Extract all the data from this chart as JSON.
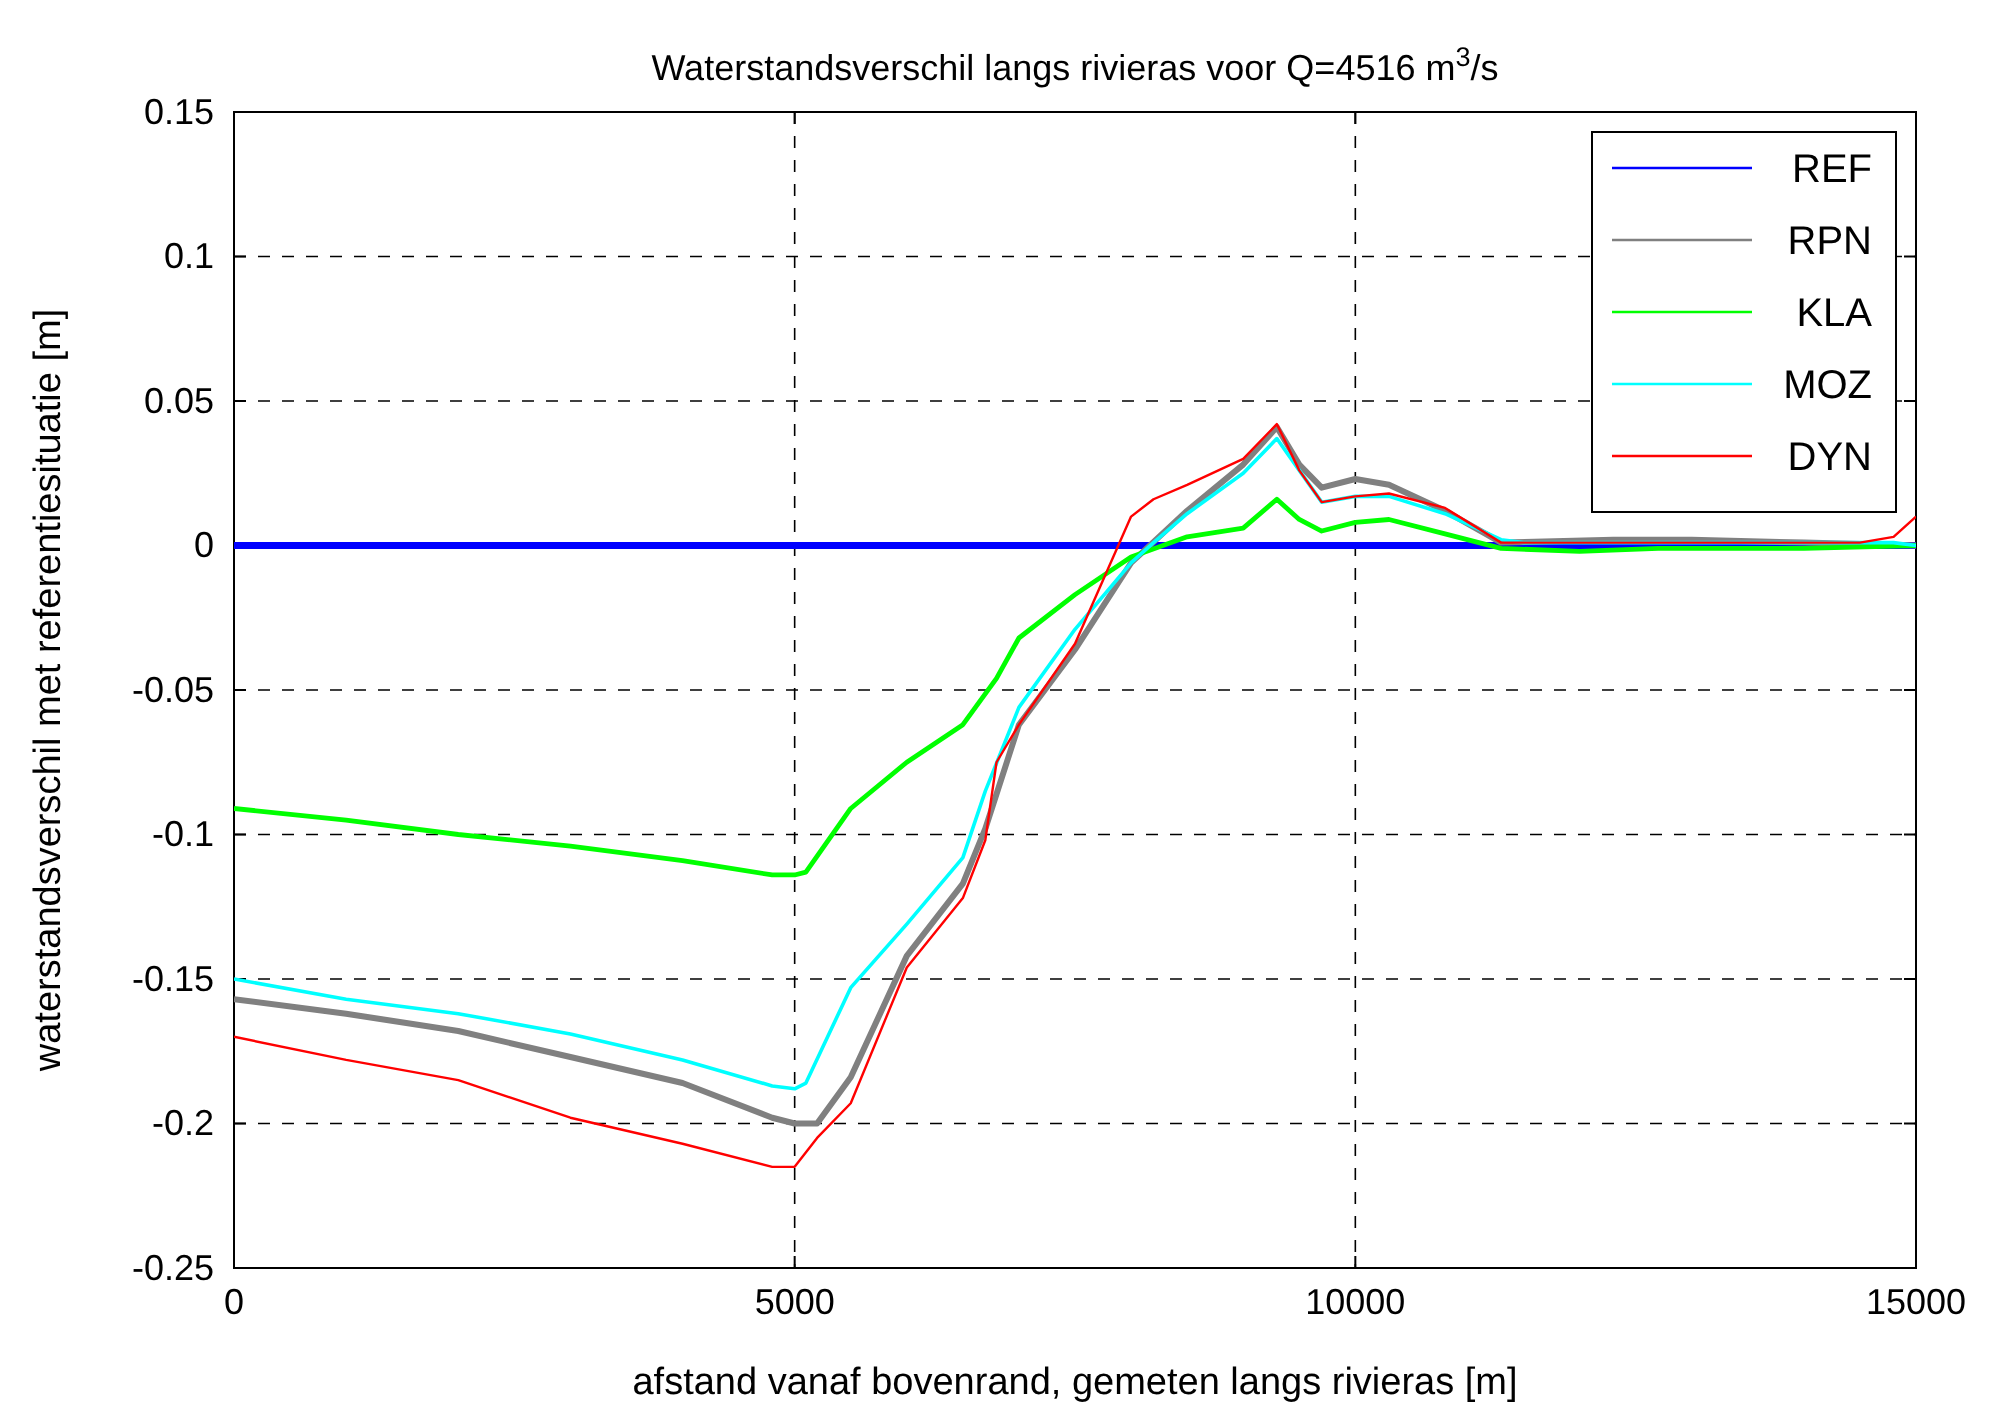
{
  "chart_data": {
    "type": "line",
    "title": "Waterstandsverschil langs rivieras voor Q=4516 m$^{3}$/s",
    "xlabel": "afstand vanaf bovenrand, gemeten langs rivieras [m]",
    "ylabel": "waterstandsverschil met referentiesituatie [m]",
    "xlim": [
      0,
      15000
    ],
    "xticks": [
      0,
      5000,
      10000,
      15000
    ],
    "ylim": [
      -0.25,
      0.15
    ],
    "yticks": [
      -0.25,
      -0.2,
      -0.15,
      -0.1,
      -0.05,
      0,
      0.05,
      0.1,
      0.15
    ],
    "grid": true,
    "legend": "top right",
    "line_style": "solid",
    "marker": "none",
    "series": [
      {
        "name": "REF",
        "color": "#0000ff",
        "x": [
          0,
          15000
        ],
        "values": [
          0,
          0
        ]
      },
      {
        "name": "RPN",
        "color": "#808080",
        "x": [
          0,
          1000,
          2000,
          3000,
          4000,
          4800,
          5000,
          5200,
          5500,
          6000,
          6500,
          6700,
          7000,
          7500,
          8000,
          8500,
          9000,
          9300,
          9500,
          9700,
          10000,
          10300,
          10800,
          11300,
          12300,
          13000,
          14000,
          15000
        ],
        "values": [
          -0.157,
          -0.162,
          -0.168,
          -0.177,
          -0.186,
          -0.198,
          -0.2,
          -0.2,
          -0.184,
          -0.142,
          -0.117,
          -0.098,
          -0.062,
          -0.036,
          -0.006,
          0.012,
          0.028,
          0.041,
          0.028,
          0.02,
          0.023,
          0.021,
          0.012,
          0.001,
          0.002,
          0.002,
          0.001,
          0
        ]
      },
      {
        "name": "KLA",
        "color": "#00ff00",
        "x": [
          0,
          1000,
          2000,
          3000,
          4000,
          4800,
          5000,
          5100,
          5500,
          6000,
          6500,
          6800,
          7000,
          7500,
          8000,
          8500,
          9000,
          9300,
          9500,
          9700,
          10000,
          10300,
          10800,
          11300,
          12000,
          12700,
          14000,
          15000
        ],
        "values": [
          -0.091,
          -0.095,
          -0.1,
          -0.104,
          -0.109,
          -0.114,
          -0.114,
          -0.113,
          -0.091,
          -0.075,
          -0.062,
          -0.046,
          -0.032,
          -0.017,
          -0.004,
          0.003,
          0.006,
          0.016,
          0.009,
          0.005,
          0.008,
          0.009,
          0.004,
          -0.001,
          -0.002,
          -0.001,
          -0.001,
          0
        ]
      },
      {
        "name": "MOZ",
        "color": "#00ffff",
        "x": [
          0,
          1000,
          2000,
          3000,
          4000,
          4800,
          5000,
          5100,
          5500,
          6000,
          6500,
          6700,
          7000,
          7500,
          8000,
          8200,
          8500,
          9000,
          9300,
          9500,
          9700,
          10000,
          10300,
          10800,
          11300,
          11500,
          14800,
          15000
        ],
        "values": [
          -0.15,
          -0.157,
          -0.162,
          -0.169,
          -0.178,
          -0.187,
          -0.188,
          -0.186,
          -0.153,
          -0.131,
          -0.108,
          -0.085,
          -0.056,
          -0.029,
          -0.006,
          0.001,
          0.011,
          0.025,
          0.037,
          0.026,
          0.015,
          0.017,
          0.017,
          0.011,
          0.002,
          0.001,
          0.001,
          0
        ]
      },
      {
        "name": "DYN",
        "color": "#ff0000",
        "x": [
          0,
          1000,
          2000,
          3000,
          4000,
          4800,
          5000,
          5200,
          5500,
          6000,
          6500,
          6700,
          6800,
          7000,
          7500,
          8000,
          8200,
          8500,
          9000,
          9300,
          9500,
          9700,
          10000,
          10300,
          10800,
          11300,
          14500,
          14800,
          15000
        ],
        "values": [
          -0.17,
          -0.178,
          -0.185,
          -0.198,
          -0.207,
          -0.215,
          -0.215,
          -0.205,
          -0.193,
          -0.146,
          -0.122,
          -0.102,
          -0.075,
          -0.062,
          -0.034,
          0.01,
          0.016,
          0.021,
          0.03,
          0.042,
          0.026,
          0.015,
          0.017,
          0.018,
          0.013,
          0.001,
          0.001,
          0.003,
          0.01
        ]
      }
    ]
  }
}
